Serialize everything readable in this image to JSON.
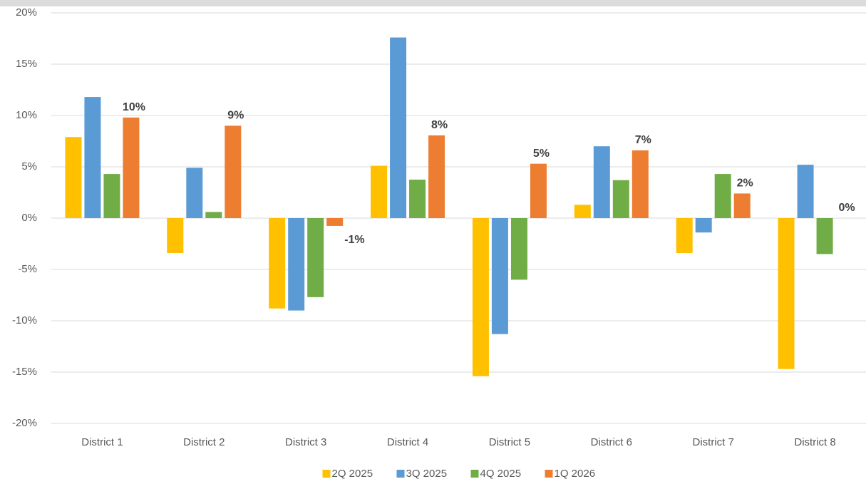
{
  "chart_data": {
    "type": "bar",
    "categories": [
      "District 1",
      "District 2",
      "District 3",
      "District 4",
      "District 5",
      "District 6",
      "District 7",
      "District 8"
    ],
    "series": [
      {
        "name": "2Q 2025",
        "color": "#FFC000",
        "values": [
          7.9,
          -3.4,
          -8.8,
          5.1,
          -15.4,
          1.3,
          -3.4,
          -14.7
        ]
      },
      {
        "name": "3Q 2025",
        "color": "#5B9BD5",
        "values": [
          11.8,
          4.9,
          -9.0,
          17.6,
          -11.3,
          7.0,
          -1.4,
          5.2
        ]
      },
      {
        "name": "4Q 2025",
        "color": "#70AD47",
        "values": [
          4.3,
          0.6,
          -7.7,
          3.75,
          -6.0,
          3.7,
          4.3,
          -3.5
        ]
      },
      {
        "name": "1Q 2026",
        "color": "#ED7D31",
        "values": [
          9.8,
          9.0,
          -0.76,
          8.06,
          5.3,
          6.6,
          2.4,
          0
        ],
        "value_labels": [
          "10%",
          "9%",
          "-1%",
          "8%",
          "5%",
          "7%",
          "2%",
          "0%"
        ]
      }
    ],
    "ylim": [
      -20,
      20
    ],
    "yticks": [
      {
        "value": -20,
        "label": "-20%"
      },
      {
        "value": -15,
        "label": "-15%"
      },
      {
        "value": -10,
        "label": "-10%"
      },
      {
        "value": -5,
        "label": "-5%"
      },
      {
        "value": 0,
        "label": "0%"
      },
      {
        "value": 5,
        "label": "5%"
      },
      {
        "value": 10,
        "label": "10%"
      },
      {
        "value": 15,
        "label": "15%"
      },
      {
        "value": 20,
        "label": "20%"
      }
    ],
    "grid": true
  }
}
